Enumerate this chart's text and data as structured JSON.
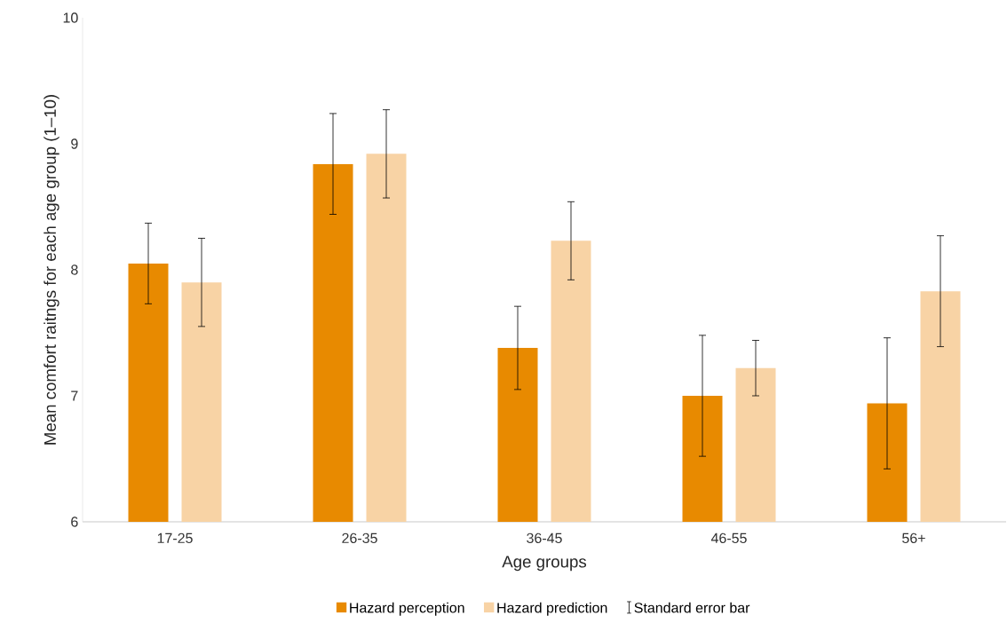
{
  "chart_data": {
    "type": "bar",
    "xlabel": "Age groups",
    "ylabel": "Mean comfort raitngs for each age group (1–10)",
    "categories": [
      "17-25",
      "26-35",
      "36-45",
      "46-55",
      "56+"
    ],
    "series": [
      {
        "name": "Hazard perception",
        "color": "#e88a00",
        "values": [
          8.05,
          8.84,
          7.38,
          7.0,
          6.94
        ],
        "errors": [
          0.32,
          0.4,
          0.33,
          0.48,
          0.52
        ]
      },
      {
        "name": "Hazard prediction",
        "color": "#f8d3a5",
        "values": [
          7.9,
          8.92,
          8.23,
          7.22,
          7.83
        ],
        "errors": [
          0.35,
          0.35,
          0.31,
          0.22,
          0.44
        ]
      }
    ],
    "ylim": [
      6,
      10
    ],
    "yticks": [
      6,
      7,
      8,
      9,
      10
    ],
    "legend": "bottom",
    "annotations": [
      "Standard error bar"
    ]
  }
}
